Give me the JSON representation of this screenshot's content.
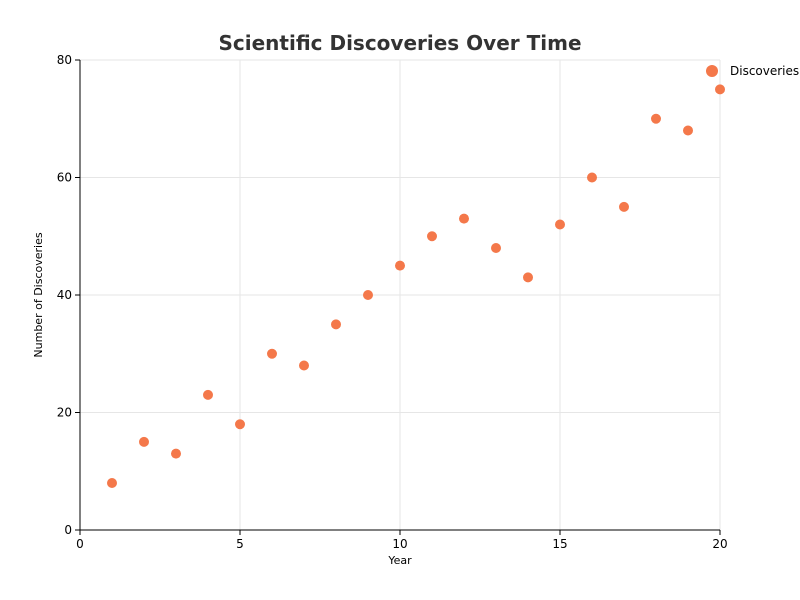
{
  "chart_data": {
    "type": "scatter",
    "title": "Scientific Discoveries Over Time",
    "xlabel": "Year",
    "ylabel": "Number of Discoveries",
    "xlim": [
      0,
      20
    ],
    "ylim": [
      0,
      80
    ],
    "x_ticks": [
      0,
      5,
      10,
      15,
      20
    ],
    "y_ticks": [
      0,
      20,
      40,
      60,
      80
    ],
    "grid": true,
    "legend_position": "top-right",
    "series": [
      {
        "name": "Discoveries",
        "color": "#f4784a",
        "x": [
          1,
          2,
          3,
          4,
          5,
          6,
          7,
          8,
          9,
          10,
          11,
          12,
          13,
          14,
          15,
          16,
          17,
          18,
          19,
          20
        ],
        "values": [
          8,
          15,
          13,
          23,
          18,
          30,
          28,
          35,
          40,
          45,
          50,
          53,
          48,
          43,
          52,
          60,
          55,
          70,
          68,
          75
        ]
      }
    ]
  }
}
